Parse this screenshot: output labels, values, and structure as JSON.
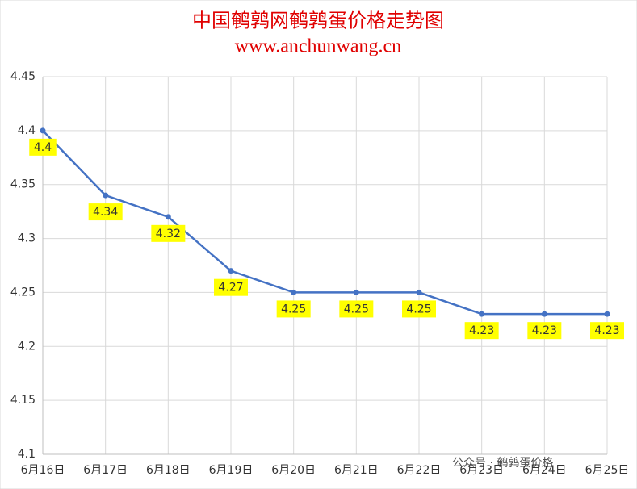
{
  "chart_data": {
    "type": "line",
    "title": "中国鹌鹑网鹌鹑蛋价格走势图",
    "subtitle": "www.anchunwang.cn",
    "watermark": "公众号 · 鹌鹑蛋价格",
    "categories": [
      "6月16日",
      "6月17日",
      "6月18日",
      "6月19日",
      "6月20日",
      "6月21日",
      "6月22日",
      "6月23日",
      "6月24日",
      "6月25日"
    ],
    "series": [
      {
        "name": "鹌鹑蛋价格",
        "color": "#4472c4",
        "values": [
          4.4,
          4.34,
          4.32,
          4.27,
          4.25,
          4.25,
          4.25,
          4.23,
          4.23,
          4.23
        ]
      }
    ],
    "ylim": [
      4.1,
      4.45
    ],
    "yticks": [
      4.1,
      4.15,
      4.2,
      4.25,
      4.3,
      4.35,
      4.4,
      4.45
    ],
    "grid": true,
    "label_color": "#ffff00"
  }
}
